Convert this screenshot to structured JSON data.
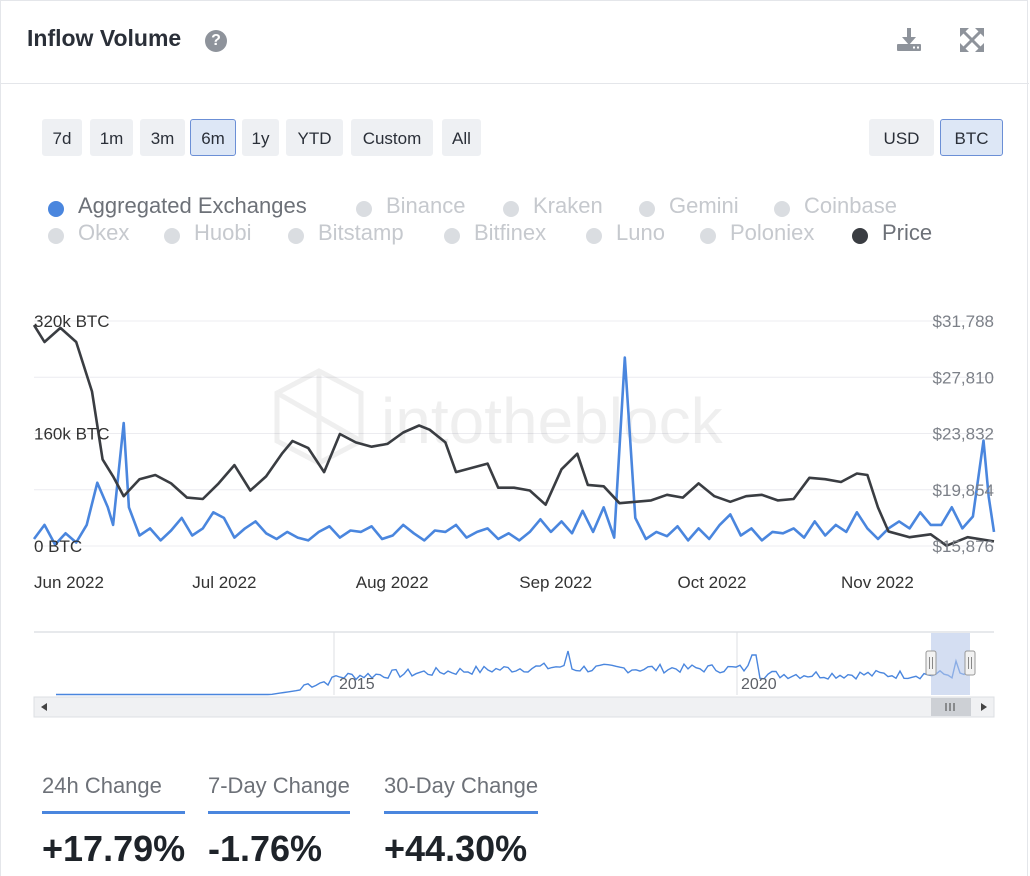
{
  "header": {
    "title": "Inflow Volume"
  },
  "icons": {
    "help": "help-circle-icon",
    "download": "download-icon",
    "fullscreen": "expand-arrows-icon"
  },
  "ranges": [
    {
      "label": "7d",
      "active": false
    },
    {
      "label": "1m",
      "active": false
    },
    {
      "label": "3m",
      "active": false
    },
    {
      "label": "6m",
      "active": true
    },
    {
      "label": "1y",
      "active": false
    },
    {
      "label": "YTD",
      "active": false
    },
    {
      "label": "Custom",
      "active": false
    },
    {
      "label": "All",
      "active": false
    }
  ],
  "currency": [
    {
      "label": "USD",
      "active": false
    },
    {
      "label": "BTC",
      "active": true
    }
  ],
  "legend": [
    {
      "label": "Aggregated Exchanges",
      "active": true,
      "color": "#4a86de"
    },
    {
      "label": "Binance",
      "active": false
    },
    {
      "label": "Kraken",
      "active": false
    },
    {
      "label": "Gemini",
      "active": false
    },
    {
      "label": "Coinbase",
      "active": false
    },
    {
      "label": "Okex",
      "active": false
    },
    {
      "label": "Huobi",
      "active": false
    },
    {
      "label": "Bitstamp",
      "active": false
    },
    {
      "label": "Bitfinex",
      "active": false
    },
    {
      "label": "Luno",
      "active": false
    },
    {
      "label": "Poloniex",
      "active": false
    },
    {
      "label": "Price",
      "active": true,
      "color": "#3a3d42"
    }
  ],
  "watermark": "intotheblock",
  "navigator": {
    "labels": [
      "2015",
      "2020"
    ]
  },
  "stats": [
    {
      "label": "24h Change",
      "value": "+17.79%"
    },
    {
      "label": "7-Day Change",
      "value": "-1.76%"
    },
    {
      "label": "30-Day Change",
      "value": "+44.30%"
    }
  ],
  "chart_data": {
    "type": "line",
    "title": "Inflow Volume",
    "x_tick_labels": [
      "Jun 2022",
      "Jul 2022",
      "Aug 2022",
      "Sep 2022",
      "Oct 2022",
      "Nov 2022"
    ],
    "x_range": [
      "2022-06-01",
      "2022-11-30"
    ],
    "y_left": {
      "tick_labels": [
        "0 BTC",
        "160k BTC",
        "320k BTC"
      ],
      "range": [
        0,
        320000
      ],
      "unit": "BTC"
    },
    "y_right": {
      "tick_labels": [
        "$15,876",
        "$19,854",
        "$23,832",
        "$27,810",
        "$31,788"
      ],
      "range": [
        15876,
        31788
      ],
      "unit": "USD"
    },
    "grid": true,
    "legend_position": "top",
    "colors": {
      "inflow": "#4a86de",
      "price": "#3a3d42"
    },
    "series": [
      {
        "name": "Aggregated Exchanges",
        "axis": "left",
        "points": [
          [
            "2022-06-01",
            10000
          ],
          [
            "2022-06-03",
            30000
          ],
          [
            "2022-06-05",
            2000
          ],
          [
            "2022-06-07",
            18000
          ],
          [
            "2022-06-09",
            5000
          ],
          [
            "2022-06-11",
            30000
          ],
          [
            "2022-06-13",
            90000
          ],
          [
            "2022-06-15",
            55000
          ],
          [
            "2022-06-16",
            30000
          ],
          [
            "2022-06-18",
            175000
          ],
          [
            "2022-06-19",
            55000
          ],
          [
            "2022-06-21",
            15000
          ],
          [
            "2022-06-23",
            25000
          ],
          [
            "2022-06-25",
            8000
          ],
          [
            "2022-06-27",
            22000
          ],
          [
            "2022-06-29",
            40000
          ],
          [
            "2022-07-01",
            15000
          ],
          [
            "2022-07-03",
            25000
          ],
          [
            "2022-07-05",
            48000
          ],
          [
            "2022-07-07",
            40000
          ],
          [
            "2022-07-09",
            12000
          ],
          [
            "2022-07-11",
            25000
          ],
          [
            "2022-07-13",
            35000
          ],
          [
            "2022-07-15",
            18000
          ],
          [
            "2022-07-17",
            10000
          ],
          [
            "2022-07-19",
            20000
          ],
          [
            "2022-07-21",
            12000
          ],
          [
            "2022-07-23",
            8000
          ],
          [
            "2022-07-25",
            20000
          ],
          [
            "2022-07-27",
            28000
          ],
          [
            "2022-07-29",
            12000
          ],
          [
            "2022-07-31",
            22000
          ],
          [
            "2022-08-02",
            20000
          ],
          [
            "2022-08-04",
            28000
          ],
          [
            "2022-08-06",
            10000
          ],
          [
            "2022-08-08",
            15000
          ],
          [
            "2022-08-10",
            30000
          ],
          [
            "2022-08-12",
            18000
          ],
          [
            "2022-08-14",
            8000
          ],
          [
            "2022-08-16",
            22000
          ],
          [
            "2022-08-18",
            20000
          ],
          [
            "2022-08-20",
            30000
          ],
          [
            "2022-08-22",
            12000
          ],
          [
            "2022-08-24",
            20000
          ],
          [
            "2022-08-26",
            25000
          ],
          [
            "2022-08-28",
            10000
          ],
          [
            "2022-08-30",
            18000
          ],
          [
            "2022-09-01",
            8000
          ],
          [
            "2022-09-03",
            20000
          ],
          [
            "2022-09-05",
            38000
          ],
          [
            "2022-09-07",
            20000
          ],
          [
            "2022-09-09",
            35000
          ],
          [
            "2022-09-11",
            18000
          ],
          [
            "2022-09-13",
            50000
          ],
          [
            "2022-09-15",
            20000
          ],
          [
            "2022-09-17",
            55000
          ],
          [
            "2022-09-19",
            12000
          ],
          [
            "2022-09-21",
            268000
          ],
          [
            "2022-09-23",
            40000
          ],
          [
            "2022-09-25",
            10000
          ],
          [
            "2022-09-27",
            20000
          ],
          [
            "2022-09-29",
            14000
          ],
          [
            "2022-10-01",
            28000
          ],
          [
            "2022-10-03",
            8000
          ],
          [
            "2022-10-05",
            25000
          ],
          [
            "2022-10-07",
            10000
          ],
          [
            "2022-10-09",
            30000
          ],
          [
            "2022-10-11",
            45000
          ],
          [
            "2022-10-13",
            15000
          ],
          [
            "2022-10-15",
            25000
          ],
          [
            "2022-10-17",
            8000
          ],
          [
            "2022-10-19",
            20000
          ],
          [
            "2022-10-21",
            18000
          ],
          [
            "2022-10-23",
            25000
          ],
          [
            "2022-10-25",
            12000
          ],
          [
            "2022-10-27",
            35000
          ],
          [
            "2022-10-29",
            15000
          ],
          [
            "2022-10-31",
            30000
          ],
          [
            "2022-11-02",
            20000
          ],
          [
            "2022-11-04",
            48000
          ],
          [
            "2022-11-06",
            25000
          ],
          [
            "2022-11-08",
            10000
          ],
          [
            "2022-11-10",
            25000
          ],
          [
            "2022-11-12",
            35000
          ],
          [
            "2022-11-14",
            25000
          ],
          [
            "2022-11-16",
            48000
          ],
          [
            "2022-11-18",
            30000
          ],
          [
            "2022-11-20",
            30000
          ],
          [
            "2022-11-22",
            55000
          ],
          [
            "2022-11-24",
            25000
          ],
          [
            "2022-11-26",
            42000
          ],
          [
            "2022-11-28",
            150000
          ],
          [
            "2022-11-29",
            70000
          ],
          [
            "2022-11-30",
            20000
          ]
        ]
      },
      {
        "name": "Price",
        "axis": "right",
        "points": [
          [
            "2022-06-01",
            31500
          ],
          [
            "2022-06-03",
            30300
          ],
          [
            "2022-06-06",
            31300
          ],
          [
            "2022-06-09",
            30300
          ],
          [
            "2022-06-12",
            26800
          ],
          [
            "2022-06-14",
            22000
          ],
          [
            "2022-06-16",
            20800
          ],
          [
            "2022-06-18",
            19400
          ],
          [
            "2022-06-21",
            20600
          ],
          [
            "2022-06-24",
            20900
          ],
          [
            "2022-06-27",
            20300
          ],
          [
            "2022-06-30",
            19300
          ],
          [
            "2022-07-03",
            19200
          ],
          [
            "2022-07-06",
            20300
          ],
          [
            "2022-07-09",
            21600
          ],
          [
            "2022-07-12",
            19800
          ],
          [
            "2022-07-15",
            20800
          ],
          [
            "2022-07-18",
            22400
          ],
          [
            "2022-07-20",
            23300
          ],
          [
            "2022-07-23",
            22800
          ],
          [
            "2022-07-26",
            21100
          ],
          [
            "2022-07-29",
            23800
          ],
          [
            "2022-08-01",
            23200
          ],
          [
            "2022-08-04",
            22900
          ],
          [
            "2022-08-07",
            23100
          ],
          [
            "2022-08-10",
            23900
          ],
          [
            "2022-08-13",
            24400
          ],
          [
            "2022-08-15",
            24100
          ],
          [
            "2022-08-18",
            23200
          ],
          [
            "2022-08-20",
            21100
          ],
          [
            "2022-08-23",
            21400
          ],
          [
            "2022-08-26",
            21700
          ],
          [
            "2022-08-28",
            20000
          ],
          [
            "2022-08-31",
            20000
          ],
          [
            "2022-09-03",
            19800
          ],
          [
            "2022-09-06",
            18800
          ],
          [
            "2022-09-09",
            21300
          ],
          [
            "2022-09-12",
            22400
          ],
          [
            "2022-09-14",
            20200
          ],
          [
            "2022-09-17",
            20100
          ],
          [
            "2022-09-20",
            18900
          ],
          [
            "2022-09-23",
            19000
          ],
          [
            "2022-09-26",
            19100
          ],
          [
            "2022-09-29",
            19500
          ],
          [
            "2022-10-02",
            19300
          ],
          [
            "2022-10-05",
            20300
          ],
          [
            "2022-10-08",
            19400
          ],
          [
            "2022-10-11",
            19000
          ],
          [
            "2022-10-14",
            19400
          ],
          [
            "2022-10-17",
            19500
          ],
          [
            "2022-10-20",
            19100
          ],
          [
            "2022-10-23",
            19200
          ],
          [
            "2022-10-26",
            20700
          ],
          [
            "2022-10-29",
            20600
          ],
          [
            "2022-11-01",
            20400
          ],
          [
            "2022-11-04",
            21000
          ],
          [
            "2022-11-06",
            20900
          ],
          [
            "2022-11-08",
            18600
          ],
          [
            "2022-11-10",
            16900
          ],
          [
            "2022-11-14",
            16500
          ],
          [
            "2022-11-18",
            16700
          ],
          [
            "2022-11-21",
            15900
          ],
          [
            "2022-11-25",
            16500
          ],
          [
            "2022-11-30",
            16200
          ]
        ]
      }
    ]
  }
}
